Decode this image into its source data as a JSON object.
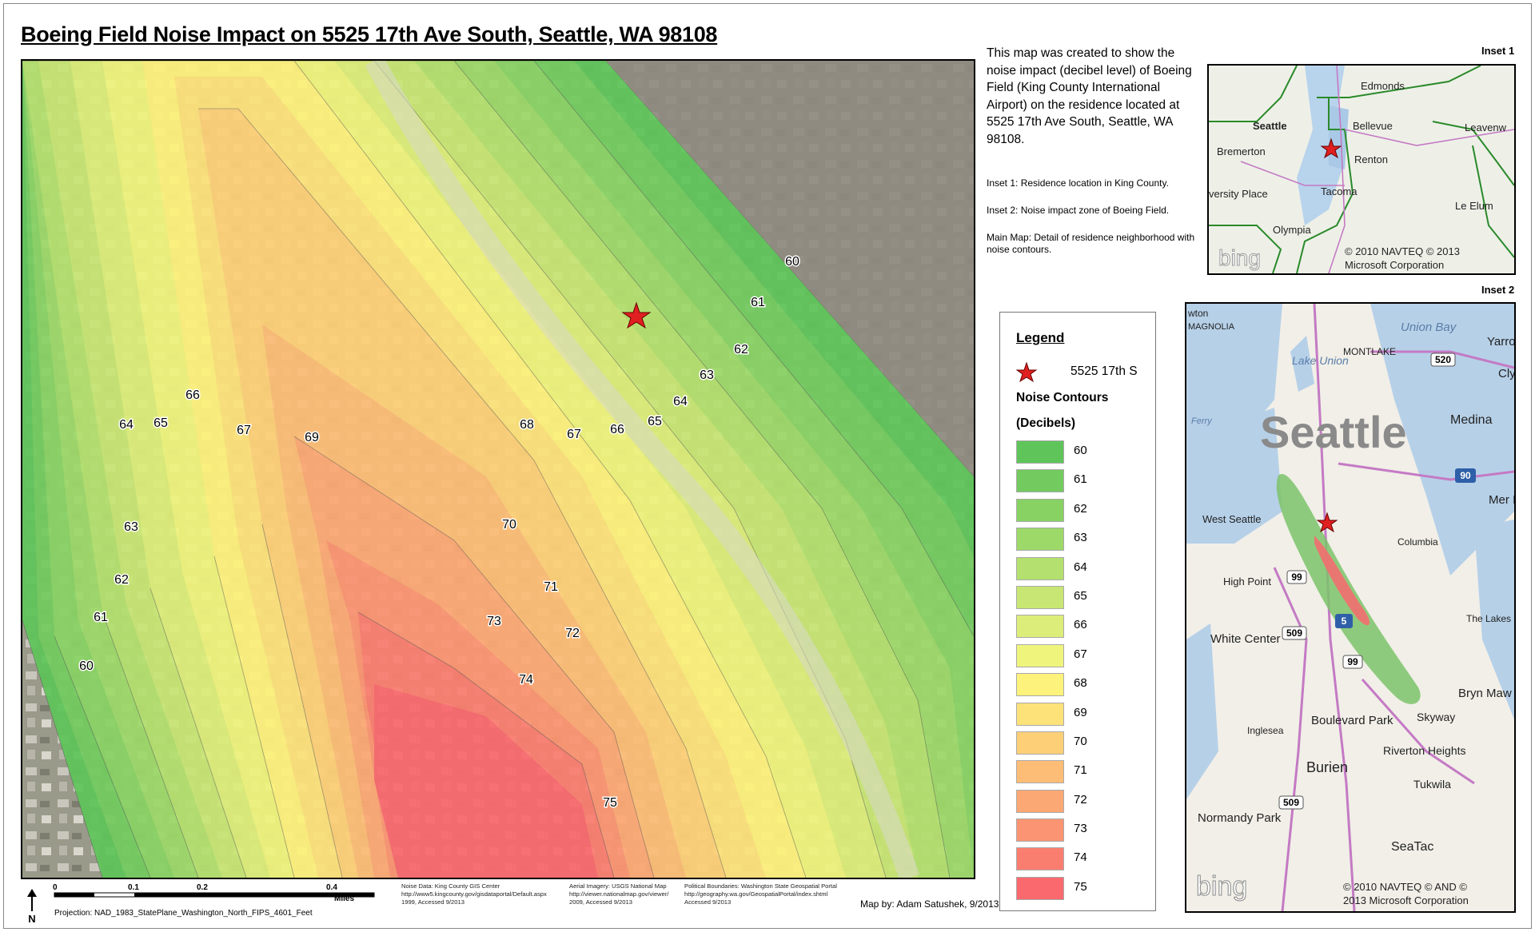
{
  "title": "Boeing Field Noise Impact on 5525 17th Ave South, Seattle, WA 98108",
  "description": "This map was created to show the noise impact (decibel level) of Boeing Field (King County International Airport) on the residence located at 5525 17th Ave South, Seattle, WA 98108.",
  "notes": [
    "Inset 1: Residence location in King County.",
    "Inset 2: Noise impact zone of Boeing Field.",
    "Main Map: Detail of residence neighborhood with noise contours."
  ],
  "inset1": {
    "label": "Inset 1",
    "places": [
      "Edmonds",
      "Seattle",
      "Bellevue",
      "Leavenw",
      "Bremerton",
      "Renton",
      "versity Place",
      "Tacoma",
      "Le Elum",
      "Olympia"
    ],
    "copyright_line1": "© 2010 NAVTEQ © 2013",
    "copyright_line2": "Microsoft Corporation",
    "bing": "bing"
  },
  "inset2": {
    "label": "Inset 2",
    "places": [
      "wton",
      "MAGNOLIA",
      "Union Bay",
      "Yarro",
      "Lake Union",
      "MONTLAKE",
      "Cly",
      "Seattle",
      "Medina",
      "West Seattle",
      "Mer Isl",
      "Columbia",
      "High Point",
      "The Lakes",
      "White Center",
      "Bryn Maw",
      "Skyway",
      "Boulevard Park",
      "Inglesea",
      "Riverton Heights",
      "Burien",
      "Tukwila",
      "Normandy Park",
      "SeaTac",
      "Ferry"
    ],
    "roads": [
      "520",
      "90",
      "99",
      "509",
      "5",
      "99",
      "509"
    ],
    "copyright_line1": "© 2010 NAVTEQ © AND ©",
    "copyright_line2": "2013 Microsoft Corporation",
    "bing": "bing"
  },
  "legend": {
    "title": "Legend",
    "residence_label": "5525 17th S",
    "contours_title": "Noise Contours",
    "units": "(Decibels)",
    "levels": [
      {
        "value": "60",
        "color": "#5fc55a"
      },
      {
        "value": "61",
        "color": "#73cb5f"
      },
      {
        "value": "62",
        "color": "#88d264"
      },
      {
        "value": "63",
        "color": "#9dd969"
      },
      {
        "value": "64",
        "color": "#b3e06e"
      },
      {
        "value": "65",
        "color": "#c8e674"
      },
      {
        "value": "66",
        "color": "#dced79"
      },
      {
        "value": "67",
        "color": "#eff47c"
      },
      {
        "value": "68",
        "color": "#fdf27b"
      },
      {
        "value": "69",
        "color": "#fde27a"
      },
      {
        "value": "70",
        "color": "#fdd078"
      },
      {
        "value": "71",
        "color": "#fdbd76"
      },
      {
        "value": "72",
        "color": "#fca874"
      },
      {
        "value": "73",
        "color": "#fb9472"
      },
      {
        "value": "74",
        "color": "#fa7e70"
      },
      {
        "value": "75",
        "color": "#f9696e"
      }
    ]
  },
  "map_labels": [
    "60",
    "61",
    "62",
    "63",
    "64",
    "65",
    "66",
    "67",
    "68",
    "66",
    "67",
    "69",
    "64",
    "65",
    "63",
    "62",
    "61",
    "60",
    "70",
    "71",
    "72",
    "73",
    "74",
    "75"
  ],
  "scale_bar": {
    "ticks": [
      "0",
      "0.1",
      "0.2",
      "0.4"
    ],
    "unit": "Miles"
  },
  "north_arrow": "N",
  "projection": "Projection: NAD_1983_StatePlane_Washington_North_FIPS_4601_Feet",
  "sources": [
    {
      "line1": "Noise Data: King County GIS Center",
      "line2": "http://www5.kingcounty.gov/gisdataportal/Default.aspx",
      "line3": "1999, Accessed 9/2013"
    },
    {
      "line1": "Aerial Imagery: USGS National Map",
      "line2": "http://viewer.nationalmap.gov/viewer/",
      "line3": "2009, Accessed 9/2013"
    },
    {
      "line1": "Political Boundaries: Washington State Geospatial Portal",
      "line2": "http://geography.wa.gov/GeospatialPortal/index.shtml",
      "line3": "Accessed 9/2013"
    }
  ],
  "map_by": "Map by: Adam Satushek, 9/2013"
}
